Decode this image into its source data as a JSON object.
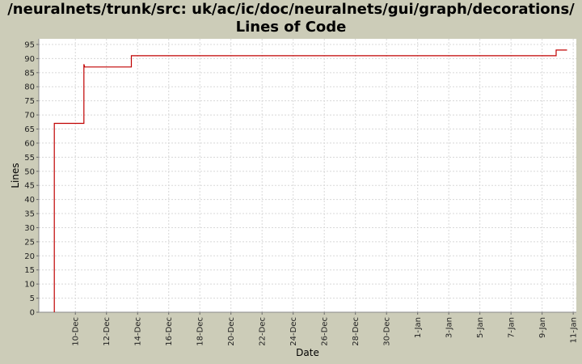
{
  "chart_data": {
    "type": "line",
    "title": "/neuralnets/trunk/src: uk/ac/ic/doc/neuralnets/gui/graph/decorations/",
    "subtitle": "Lines of Code",
    "xlabel": "Date",
    "ylabel": "Lines",
    "ylim": [
      0,
      97
    ],
    "yticks": [
      0,
      5,
      10,
      15,
      20,
      25,
      30,
      35,
      40,
      45,
      50,
      55,
      60,
      65,
      70,
      75,
      80,
      85,
      90,
      95
    ],
    "xticks": [
      {
        "label": "10-Dec",
        "day": 10
      },
      {
        "label": "12-Dec",
        "day": 12
      },
      {
        "label": "14-Dec",
        "day": 14
      },
      {
        "label": "16-Dec",
        "day": 16
      },
      {
        "label": "18-Dec",
        "day": 18
      },
      {
        "label": "20-Dec",
        "day": 20
      },
      {
        "label": "22-Dec",
        "day": 22
      },
      {
        "label": "24-Dec",
        "day": 24
      },
      {
        "label": "26-Dec",
        "day": 26
      },
      {
        "label": "28-Dec",
        "day": 28
      },
      {
        "label": "30-Dec",
        "day": 30
      },
      {
        "label": "1-Jan",
        "day": 32
      },
      {
        "label": "3-Jan",
        "day": 34
      },
      {
        "label": "5-Jan",
        "day": 36
      },
      {
        "label": "7-Jan",
        "day": 38
      },
      {
        "label": "9-Jan",
        "day": 40
      },
      {
        "label": "11-Jan",
        "day": 42
      }
    ],
    "series": [
      {
        "color": "#c00000",
        "step": true,
        "points": [
          {
            "x": 8.65,
            "y": 0
          },
          {
            "x": 8.65,
            "y": 67
          },
          {
            "x": 10.55,
            "y": 67
          },
          {
            "x": 10.55,
            "y": 88
          },
          {
            "x": 10.6,
            "y": 87
          },
          {
            "x": 13.6,
            "y": 87
          },
          {
            "x": 13.6,
            "y": 91
          },
          {
            "x": 40.9,
            "y": 91
          },
          {
            "x": 40.9,
            "y": 93
          },
          {
            "x": 41.6,
            "y": 93
          }
        ]
      }
    ],
    "grid": true,
    "colors": {
      "background": "#ccccb8",
      "plot": "#ffffff",
      "grid": "#d8d8d8",
      "line": "#c00000"
    }
  }
}
